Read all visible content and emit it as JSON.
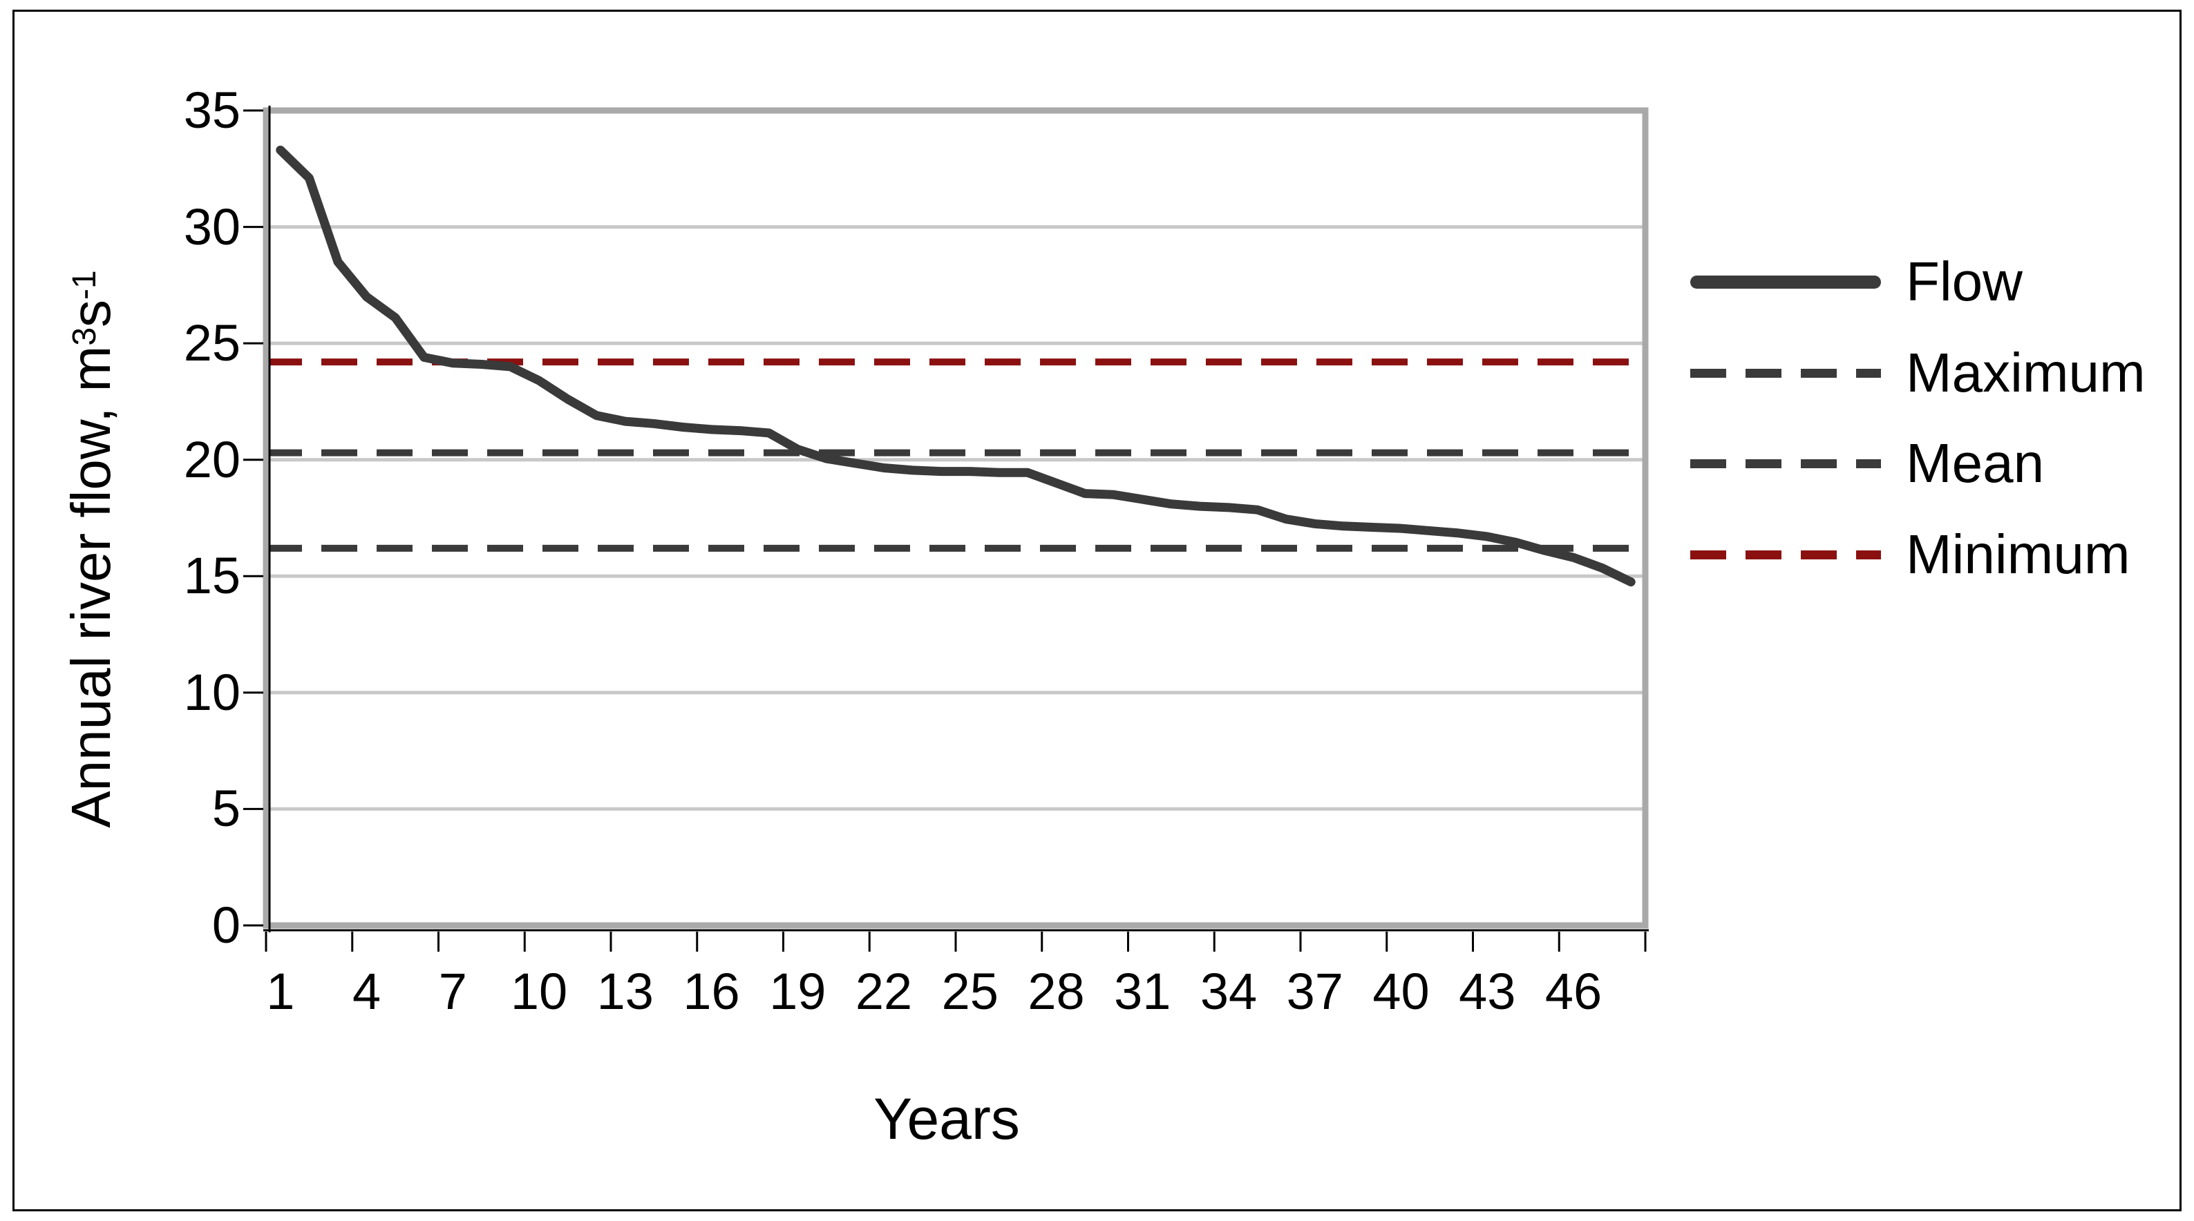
{
  "figure": {
    "background": "#ffffff",
    "border_color": "#000000"
  },
  "chart_data": {
    "type": "line",
    "title": "",
    "xlabel": "Years",
    "ylabel_plain": "Annual river flow, m3 s-1",
    "ylabel_parts": {
      "main": "Annual river flow, m",
      "sup1": "3",
      "mid": "s",
      "sup2": "-1"
    },
    "n_categories": 48,
    "ylim": [
      0,
      35
    ],
    "y_ticks": [
      0,
      5,
      10,
      15,
      20,
      25,
      30,
      35
    ],
    "x_label_ticks": [
      1,
      4,
      7,
      10,
      13,
      16,
      19,
      22,
      25,
      28,
      31,
      34,
      37,
      40,
      43,
      46
    ],
    "grid": "horizontal-only",
    "series": [
      {
        "name": "Flow",
        "style": "solid",
        "color": "#3A3A3A",
        "x": [
          1,
          2,
          3,
          4,
          5,
          6,
          7,
          8,
          9,
          10,
          11,
          12,
          13,
          14,
          15,
          16,
          17,
          18,
          19,
          20,
          21,
          22,
          23,
          24,
          25,
          26,
          27,
          28,
          29,
          30,
          31,
          32,
          33,
          34,
          35,
          36,
          37,
          38,
          39,
          40,
          41,
          42,
          43,
          44,
          45,
          46,
          47,
          48
        ],
        "values": [
          33.3,
          32.1,
          28.5,
          27.0,
          26.1,
          24.4,
          24.15,
          24.1,
          24.0,
          23.4,
          22.6,
          21.9,
          21.65,
          21.55,
          21.4,
          21.3,
          21.25,
          21.15,
          20.45,
          20.05,
          19.85,
          19.65,
          19.55,
          19.5,
          19.5,
          19.45,
          19.45,
          19.0,
          18.55,
          18.5,
          18.3,
          18.1,
          18.0,
          17.95,
          17.85,
          17.45,
          17.25,
          17.15,
          17.1,
          17.05,
          16.95,
          16.85,
          16.7,
          16.45,
          16.1,
          15.8,
          15.35,
          14.75
        ]
      }
    ],
    "hlines": [
      {
        "value": 24.2,
        "color": "#8B1111",
        "style": "dashed"
      },
      {
        "value": 20.3,
        "color": "#3A3A3A",
        "style": "dashed"
      },
      {
        "value": 16.2,
        "color": "#3A3A3A",
        "style": "dashed"
      }
    ],
    "legend": {
      "position": "right",
      "items": [
        {
          "label": "Flow",
          "line_style": "solid",
          "color": "#3A3A3A"
        },
        {
          "label": "Maximum",
          "line_style": "dashed",
          "color": "#3A3A3A"
        },
        {
          "label": "Mean",
          "line_style": "dashed",
          "color": "#3A3A3A"
        },
        {
          "label": "Minimum",
          "line_style": "dashed",
          "color": "#8B1111"
        }
      ]
    },
    "colors": {
      "gridline": "#C8C8C8",
      "plot_border": "#A9A9A9",
      "axis": "#000000",
      "text": "#000000"
    }
  }
}
